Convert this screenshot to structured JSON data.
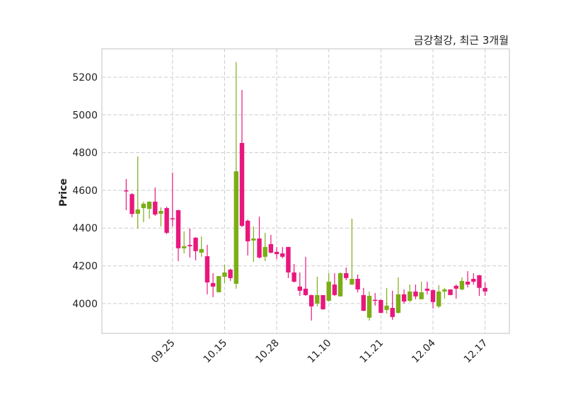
{
  "chart_data": {
    "type": "candlestick",
    "title": "금강철강, 최근 3개월",
    "xlabel": "",
    "ylabel": "Price",
    "ylim": [
      3842,
      5350
    ],
    "xlim": [
      -4.2,
      66.2
    ],
    "grid": true,
    "yticks": [
      4000,
      4200,
      4400,
      4600,
      4800,
      5000,
      5200
    ],
    "xticks": [
      {
        "index": 8,
        "label": "09.25"
      },
      {
        "index": 17,
        "label": "10.15"
      },
      {
        "index": 26,
        "label": "10.28"
      },
      {
        "index": 35,
        "label": "11.10"
      },
      {
        "index": 44,
        "label": "11.21"
      },
      {
        "index": 53,
        "label": "12.04"
      },
      {
        "index": 62,
        "label": "12.17"
      }
    ],
    "colors": {
      "up": "#7bae16",
      "down": "#e8177d",
      "grid": "#cccccc",
      "frame": "#d6d6d6"
    },
    "ohlc": [
      [
        4600,
        4660,
        4495,
        4600
      ],
      [
        4580,
        4585,
        4458,
        4475
      ],
      [
        4476,
        4780,
        4398,
        4499
      ],
      [
        4506,
        4540,
        4431,
        4529
      ],
      [
        4502,
        4542,
        4450,
        4540
      ],
      [
        4540,
        4615,
        4465,
        4472
      ],
      [
        4476,
        4510,
        4409,
        4491
      ],
      [
        4506,
        4514,
        4368,
        4375
      ],
      [
        4452,
        4694,
        4409,
        4448
      ],
      [
        4495,
        4497,
        4225,
        4293
      ],
      [
        4293,
        4383,
        4266,
        4304
      ],
      [
        4311,
        4398,
        4244,
        4304
      ],
      [
        4349,
        4352,
        4229,
        4278
      ],
      [
        4270,
        4356,
        4248,
        4289
      ],
      [
        4251,
        4311,
        4049,
        4112
      ],
      [
        4109,
        4161,
        4034,
        4090
      ],
      [
        4060,
        4146,
        4060,
        4146
      ],
      [
        4142,
        4206,
        4109,
        4165
      ],
      [
        4180,
        4185,
        4120,
        4135
      ],
      [
        4105,
        5280,
        4079,
        4701
      ],
      [
        4851,
        5132,
        4405,
        4412
      ],
      [
        4439,
        4445,
        4255,
        4330
      ],
      [
        4334,
        4409,
        4221,
        4345
      ],
      [
        4345,
        4461,
        4240,
        4244
      ],
      [
        4248,
        4375,
        4225,
        4300
      ],
      [
        4315,
        4364,
        4266,
        4270
      ],
      [
        4274,
        4300,
        4236,
        4262
      ],
      [
        4266,
        4300,
        4240,
        4248
      ],
      [
        4300,
        4300,
        4135,
        4165
      ],
      [
        4165,
        4210,
        4112,
        4116
      ],
      [
        4090,
        4165,
        4041,
        4068
      ],
      [
        4079,
        4248,
        4041,
        4045
      ],
      [
        4045,
        4047,
        3910,
        3985
      ],
      [
        4000,
        4142,
        3985,
        4045
      ],
      [
        4045,
        4045,
        3967,
        3970
      ],
      [
        4015,
        4161,
        4010,
        4116
      ],
      [
        4101,
        4161,
        4040,
        4045
      ],
      [
        4038,
        4165,
        4038,
        4161
      ],
      [
        4161,
        4191,
        4124,
        4135
      ],
      [
        4101,
        4450,
        4098,
        4131
      ],
      [
        4131,
        4154,
        4060,
        4075
      ],
      [
        4045,
        4083,
        3960,
        3962
      ],
      [
        3925,
        4064,
        3910,
        4041
      ],
      [
        4020,
        4056,
        3989,
        4018
      ],
      [
        4019,
        4022,
        3948,
        3951
      ],
      [
        3966,
        4083,
        3947,
        3989
      ],
      [
        3977,
        4068,
        3914,
        3929
      ],
      [
        3951,
        4139,
        3947,
        4049
      ],
      [
        4049,
        4075,
        4000,
        4011
      ],
      [
        4015,
        4101,
        4008,
        4064
      ],
      [
        4064,
        4101,
        4023,
        4038
      ],
      [
        4023,
        4116,
        4023,
        4060
      ],
      [
        4079,
        4116,
        4049,
        4068
      ],
      [
        4071,
        4075,
        3974,
        4008
      ],
      [
        3985,
        4098,
        3977,
        4064
      ],
      [
        4064,
        4083,
        4026,
        4075
      ],
      [
        4075,
        4075,
        4045,
        4045
      ],
      [
        4094,
        4101,
        4026,
        4079
      ],
      [
        4075,
        4139,
        4071,
        4120
      ],
      [
        4116,
        4172,
        4086,
        4101
      ],
      [
        4131,
        4161,
        4101,
        4116
      ],
      [
        4150,
        4152,
        4041,
        4083
      ],
      [
        4083,
        4112,
        4041,
        4064
      ]
    ]
  }
}
